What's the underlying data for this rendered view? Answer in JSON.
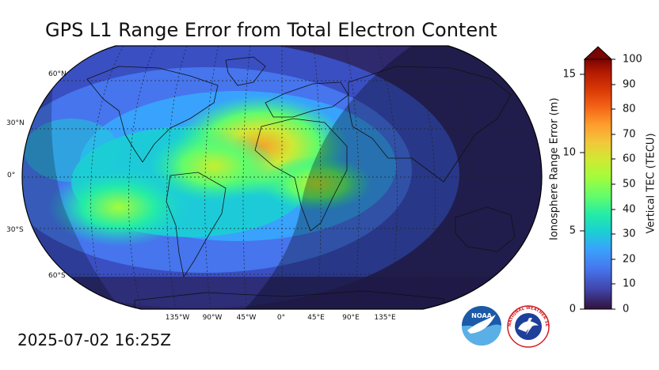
{
  "header": {
    "title": "GPS L1 Range Error from Total Electron Content"
  },
  "footer": {
    "timestamp": "2025-07-02 16:25Z"
  },
  "map": {
    "projection": "Robinson",
    "lat_labels": [
      "60°N",
      "30°N",
      "0°",
      "30°S",
      "60°S"
    ],
    "lon_labels": [
      "135°W",
      "90°W",
      "45°W",
      "0°",
      "45°E",
      "90°E",
      "135°E"
    ],
    "graticule": "dotted",
    "features": [
      "coastlines",
      "country borders",
      "night-side shading"
    ]
  },
  "colorbar": {
    "left_label": "Ionosphere Range Error (m)",
    "left_ticks": [
      "0",
      "5",
      "10",
      "15"
    ],
    "right_label": "Vertical TEC (TECU)",
    "right_ticks": [
      "0",
      "10",
      "20",
      "30",
      "40",
      "50",
      "60",
      "70",
      "80",
      "90",
      "100"
    ],
    "extend": "max",
    "colormap": [
      "#30123b",
      "#4145ab",
      "#4675ed",
      "#39a2fc",
      "#1bcfd4",
      "#24eca6",
      "#61fc6c",
      "#a4fc3b",
      "#d1e834",
      "#f3c63a",
      "#fe9b2d",
      "#f36315",
      "#d93806",
      "#b11901",
      "#7a0402"
    ]
  },
  "logos": {
    "noaa": {
      "text": "NOAA",
      "icon": "noaa-logo"
    },
    "nws": {
      "text": "NATIONAL WEATHER SERVICE",
      "icon": "nws-logo"
    }
  },
  "colors": {
    "night_overlay": "#000000",
    "frame": "#000000"
  }
}
